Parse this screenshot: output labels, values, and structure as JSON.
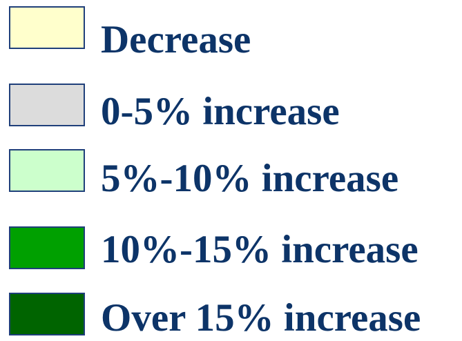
{
  "legend": {
    "items": [
      {
        "label": "Decrease",
        "color": "#ffffcc"
      },
      {
        "label": "0-5% increase",
        "color": "#dcdcdc"
      },
      {
        "label": "5%-10% increase",
        "color": "#ccffcc"
      },
      {
        "label": "10%-15% increase",
        "color": "#00a000"
      },
      {
        "label": "Over 15% increase",
        "color": "#006400"
      }
    ]
  }
}
